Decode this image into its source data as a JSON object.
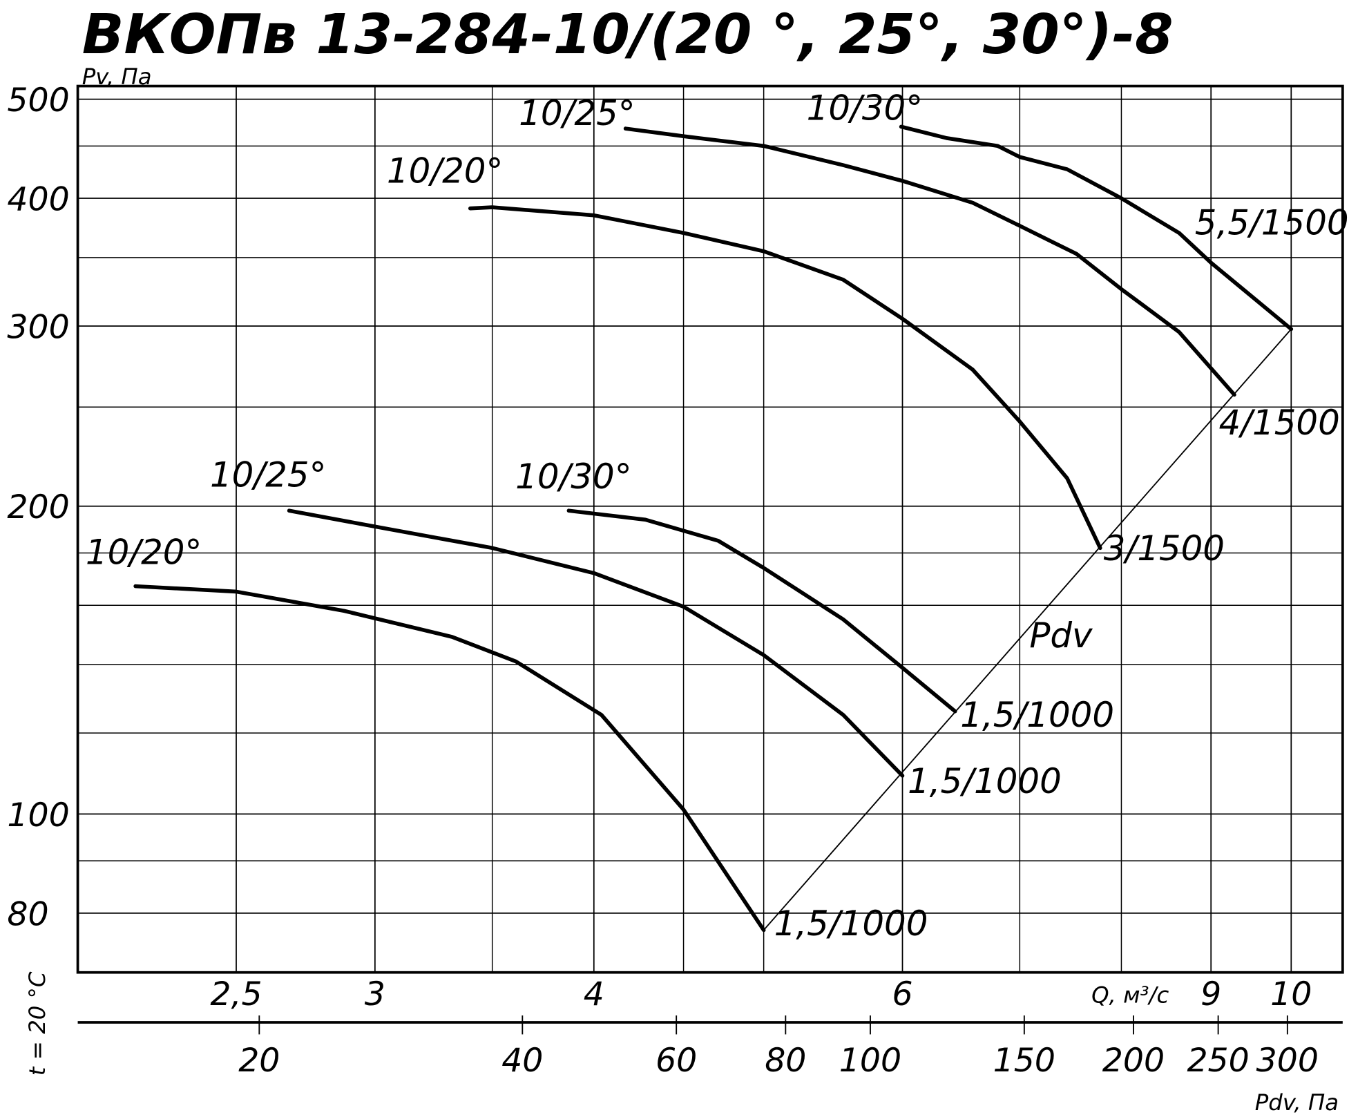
{
  "chart_data": {
    "type": "line",
    "title": "ВКОПв 13-284-10/(20 °, 25°, 30°)-8",
    "y_label": "Pv, Па",
    "x_label": "Q, м³/с",
    "x2_label": "Pdv, Па",
    "note": "t = 20 °C",
    "log_x": true,
    "log_y": true,
    "grid": true,
    "xlim": [
      2.03,
      10.7
    ],
    "xticks": [
      {
        "value": 2.5,
        "label": "2,5"
      },
      3,
      4,
      6,
      9,
      10
    ],
    "xgrid": [
      3.5,
      4.5,
      5,
      7,
      8
    ],
    "ylim": [
      70,
      515
    ],
    "yticks": [
      80,
      100,
      200,
      300,
      400,
      500
    ],
    "ygrid": [
      90,
      120,
      140,
      160,
      180,
      250,
      350,
      450
    ],
    "x2lim": [
      12.4,
      347
    ],
    "x2ticks": [
      20,
      40,
      60,
      80,
      100,
      150,
      200,
      250,
      300
    ],
    "series": [
      {
        "name": "10/20°",
        "end_label": "1,5/1000",
        "color": "#000000",
        "x": [
          2.19,
          2.5,
          2.88,
          3.32,
          3.61,
          4.04,
          4.5,
          5.0
        ],
        "values": [
          167,
          165,
          158,
          149,
          141,
          125,
          101,
          77
        ]
      },
      {
        "name": "10/25°",
        "end_label": "1,5/1000",
        "color": "#000000",
        "x": [
          2.68,
          3,
          3.5,
          4,
          4.5,
          5,
          5.55,
          6.0
        ],
        "values": [
          198,
          191,
          182,
          172,
          159.5,
          143,
          125,
          109
        ]
      },
      {
        "name": "10/30°",
        "end_label": "1,5/1000",
        "color": "#000000",
        "x": [
          3.87,
          4.28,
          4.71,
          5,
          5.55,
          6,
          6.43
        ],
        "values": [
          198,
          194,
          185,
          174,
          155,
          139,
          126
        ]
      },
      {
        "name": "10/20°",
        "end_label": "3/1500",
        "color": "#000000",
        "x": [
          3.4,
          3.5,
          4,
          4.5,
          5,
          5.55,
          6,
          6.58,
          7,
          7.45,
          7.78
        ],
        "values": [
          391,
          392,
          385,
          370,
          355,
          333,
          305,
          272,
          242,
          213,
          182
        ]
      },
      {
        "name": "10/25°",
        "end_label": "4/1500",
        "color": "#000000",
        "x": [
          4.17,
          4.5,
          5,
          5.55,
          6,
          6.58,
          7,
          7.54,
          8,
          8.63,
          9.28
        ],
        "values": [
          468,
          460,
          450,
          431,
          416,
          396,
          376,
          353,
          326,
          296,
          257
        ]
      },
      {
        "name": "10/30°",
        "end_label": "5,5/1500",
        "color": "#000000",
        "x": [
          5.99,
          6.36,
          6.8,
          7,
          7.45,
          8,
          8.63,
          9,
          10
        ],
        "values": [
          470,
          458,
          450,
          439,
          427,
          400,
          370,
          346,
          298
        ]
      }
    ],
    "pdv_line": {
      "label": "Pdv",
      "x": [
        5,
        10
      ],
      "values": [
        77,
        298
      ]
    }
  }
}
